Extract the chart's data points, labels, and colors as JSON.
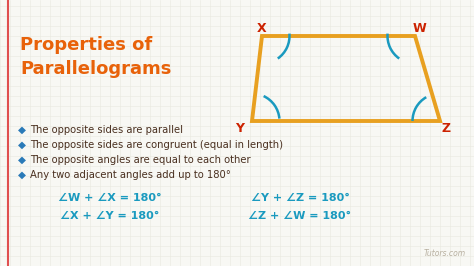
{
  "bg_color": "#f8f8f4",
  "grid_color": "#e8e8e0",
  "border_color": "#e05050",
  "title_line1": "Properties of",
  "title_line2": "Parallelograms",
  "title_color": "#e8620a",
  "bullet_diamond_color": "#2a7ab8",
  "text_color": "#4a3020",
  "bullet_points": [
    "The opposite sides are parallel",
    "The opposite sides are congruent (equal in length)",
    "The opposite angles are equal to each other",
    "Any two adjacent angles add up to 180°"
  ],
  "eq_color": "#1a9abf",
  "eq_left": [
    "∠W + ∠X = 180°",
    "∠X + ∠Y = 180°"
  ],
  "eq_right": [
    "∠Y + ∠Z = 180°",
    "∠Z + ∠W = 180°"
  ],
  "para_color": "#e8a020",
  "vertex_label_color": "#cc2200",
  "arc_color": "#1a9abf",
  "watermark": "Tutors.com",
  "watermark_color": "#b8b0a0"
}
